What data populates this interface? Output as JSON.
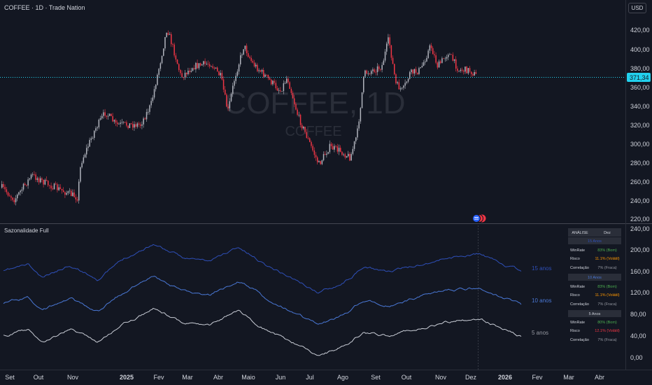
{
  "header": {
    "symbol_title": "COFFEE · 1D · Trade Nation",
    "currency_button": "USD"
  },
  "watermark": {
    "main": "COFFEE, 1D",
    "sub": "COFFEE"
  },
  "price_axis": {
    "ticks": [
      "420,00",
      "400,00",
      "380,00",
      "360,00",
      "340,00",
      "320,00",
      "300,00",
      "280,00",
      "260,00",
      "240,00",
      "220,00"
    ],
    "current_price_label": "371,34"
  },
  "indicator": {
    "title": "Sazonalidade Full",
    "axis_ticks": [
      "240,00",
      "200,00",
      "160,00",
      "120,00",
      "80,00",
      "40,00",
      "0,00"
    ],
    "line_labels": [
      "15 anos",
      "10 anos",
      "5 anos"
    ],
    "colors": {
      "line15": "#2e4fb8",
      "line10": "#4a78d6",
      "line5": "#c9cdd6"
    }
  },
  "time_axis": {
    "labels": [
      "Set",
      "Out",
      "Nov",
      "2025",
      "Fev",
      "Mar",
      "Abr",
      "Maio",
      "Jun",
      "Jul",
      "Ago",
      "Set",
      "Out",
      "Nov",
      "Dez",
      "2026",
      "Fev",
      "Mar",
      "Abr"
    ]
  },
  "analysis_table": {
    "header": [
      "ANÁLISE",
      "Dez"
    ],
    "sections": [
      {
        "title": "15 Anos",
        "rows": [
          {
            "label": "WinRate",
            "value": "83% (Bom)",
            "color": "#4caf50"
          },
          {
            "label": "Risco",
            "value": "11.1% (Volátil)",
            "color": "#ff9800"
          },
          {
            "label": "Correlação",
            "value": "7% (Fraca)",
            "color": "#9598a1"
          }
        ]
      },
      {
        "title": "10 Anos",
        "rows": [
          {
            "label": "WinRate",
            "value": "83% (Bom)",
            "color": "#4caf50"
          },
          {
            "label": "Risco",
            "value": "11.1% (Volátil)",
            "color": "#ff9800"
          },
          {
            "label": "Correlação",
            "value": "7% (Fraca)",
            "color": "#9598a1"
          }
        ]
      },
      {
        "title": "5 Anos",
        "rows": [
          {
            "label": "WinRate",
            "value": "80% (Bom)",
            "color": "#4caf50"
          },
          {
            "label": "Risco",
            "value": "12.1% (Volátil)",
            "color": "#f23645"
          },
          {
            "label": "Correlação",
            "value": "7% (Fraca)",
            "color": "#9598a1"
          }
        ]
      }
    ]
  },
  "colors": {
    "background": "#131722",
    "grid": "#1e222d",
    "up": "#b2b5be",
    "down": "#f23645",
    "current_price": "#22d1ee",
    "axis_text": "#d1d4dc"
  }
}
